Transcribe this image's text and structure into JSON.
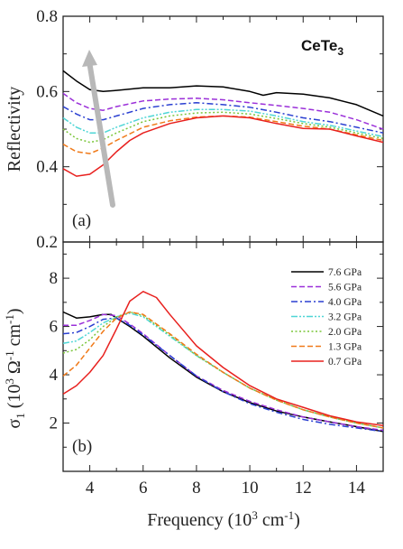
{
  "chart_data": [
    {
      "type": "line",
      "panel_label": "(a)",
      "material": {
        "main": "CeTe",
        "sub": "3"
      },
      "ylabel": "Reflectivity",
      "xlabel": "",
      "xlim": [
        3,
        15
      ],
      "ylim": [
        0.2,
        0.8
      ],
      "yticks": [
        "0.2",
        "0.4",
        "0.6",
        "0.8"
      ],
      "annotation": "gray arrow indicating increasing pressure",
      "series": [
        {
          "name": "7.6 GPa",
          "color": "#000000",
          "dash": "solid",
          "x": [
            3,
            3.5,
            4,
            4.5,
            5,
            6,
            7,
            8,
            9,
            10,
            10.5,
            11,
            12,
            13,
            14,
            15
          ],
          "y": [
            0.655,
            0.628,
            0.605,
            0.6,
            0.603,
            0.61,
            0.61,
            0.615,
            0.612,
            0.6,
            0.59,
            0.597,
            0.593,
            0.583,
            0.565,
            0.535
          ]
        },
        {
          "name": "5.6 GPa",
          "color": "#9b30d9",
          "dash": "dash",
          "x": [
            3,
            3.5,
            4,
            4.5,
            5,
            6,
            7,
            8,
            9,
            10,
            11,
            12,
            13,
            14,
            15
          ],
          "y": [
            0.595,
            0.57,
            0.555,
            0.55,
            0.56,
            0.575,
            0.58,
            0.582,
            0.578,
            0.57,
            0.563,
            0.555,
            0.545,
            0.525,
            0.5
          ]
        },
        {
          "name": "4.0 GPa",
          "color": "#2a3fd1",
          "dash": "dashdot",
          "x": [
            3,
            3.5,
            4,
            4.5,
            5,
            6,
            7,
            8,
            9,
            10,
            11,
            12,
            13,
            14,
            15
          ],
          "y": [
            0.56,
            0.54,
            0.525,
            0.525,
            0.535,
            0.555,
            0.565,
            0.57,
            0.565,
            0.558,
            0.545,
            0.53,
            0.52,
            0.505,
            0.49
          ]
        },
        {
          "name": "3.2 GPa",
          "color": "#4fd6d6",
          "dash": "dashdotdot",
          "x": [
            3,
            3.5,
            4,
            4.5,
            5,
            6,
            7,
            8,
            9,
            10,
            11,
            12,
            13,
            14,
            15
          ],
          "y": [
            0.53,
            0.505,
            0.49,
            0.49,
            0.505,
            0.53,
            0.545,
            0.552,
            0.552,
            0.548,
            0.535,
            0.52,
            0.51,
            0.495,
            0.48
          ]
        },
        {
          "name": "2.0 GPa",
          "color": "#7bc63a",
          "dash": "dot",
          "x": [
            3,
            3.5,
            4,
            4.5,
            5,
            6,
            7,
            8,
            9,
            10,
            11,
            12,
            13,
            14,
            15
          ],
          "y": [
            0.5,
            0.475,
            0.465,
            0.472,
            0.49,
            0.52,
            0.535,
            0.543,
            0.545,
            0.54,
            0.528,
            0.515,
            0.505,
            0.49,
            0.475
          ]
        },
        {
          "name": "1.3 GPa",
          "color": "#f07a1a",
          "dash": "dash",
          "x": [
            3,
            3.5,
            4,
            4.5,
            5,
            6,
            7,
            8,
            9,
            10,
            11,
            12,
            13,
            14,
            15
          ],
          "y": [
            0.46,
            0.44,
            0.435,
            0.45,
            0.47,
            0.505,
            0.522,
            0.532,
            0.535,
            0.532,
            0.52,
            0.508,
            0.5,
            0.485,
            0.47
          ]
        },
        {
          "name": "0.7 GPa",
          "color": "#e8201e",
          "dash": "solid",
          "x": [
            3,
            3.5,
            4,
            4.5,
            5,
            5.5,
            6,
            7,
            8,
            9,
            10,
            11,
            12,
            13,
            14,
            15
          ],
          "y": [
            0.395,
            0.375,
            0.38,
            0.405,
            0.44,
            0.47,
            0.49,
            0.515,
            0.53,
            0.535,
            0.53,
            0.515,
            0.502,
            0.5,
            0.482,
            0.465
          ]
        }
      ]
    },
    {
      "type": "line",
      "panel_label": "(b)",
      "ylabel": "σ1 (10^3 Ω^-1 cm^-1)",
      "xlabel": "Frequency (10^3 cm^-1)",
      "xlim": [
        3,
        15
      ],
      "ylim": [
        0,
        9.5
      ],
      "xticks": [
        "4",
        "6",
        "8",
        "10",
        "12",
        "14"
      ],
      "yticks": [
        "2",
        "4",
        "6",
        "8"
      ],
      "legend": "top-right",
      "series": [
        {
          "name": "7.6 GPa",
          "color": "#000000",
          "dash": "solid",
          "x": [
            3,
            3.5,
            4,
            4.5,
            4.8,
            5,
            5.5,
            6,
            7,
            8,
            9,
            10,
            11,
            12,
            13,
            14,
            15
          ],
          "y": [
            6.6,
            6.35,
            6.4,
            6.5,
            6.5,
            6.35,
            6.0,
            5.6,
            4.7,
            3.9,
            3.3,
            2.85,
            2.5,
            2.25,
            2.05,
            1.85,
            1.65
          ]
        },
        {
          "name": "5.6 GPa",
          "color": "#9b30d9",
          "dash": "dash",
          "x": [
            3,
            3.5,
            4,
            4.5,
            5,
            5.5,
            6,
            7,
            8,
            9,
            10,
            11,
            12,
            13,
            14,
            15
          ],
          "y": [
            6.05,
            6.05,
            6.25,
            6.5,
            6.45,
            6.1,
            5.7,
            4.8,
            3.95,
            3.35,
            2.9,
            2.55,
            2.25,
            2.05,
            1.85,
            1.7
          ]
        },
        {
          "name": "4.0 GPa",
          "color": "#2a3fd1",
          "dash": "dashdot",
          "x": [
            3,
            3.5,
            4,
            4.5,
            5,
            5.5,
            6,
            7,
            8,
            9,
            10,
            11,
            12,
            13,
            14,
            15
          ],
          "y": [
            5.7,
            5.75,
            6.0,
            6.3,
            6.35,
            6.05,
            5.65,
            4.8,
            3.95,
            3.3,
            2.8,
            2.45,
            2.15,
            1.95,
            1.8,
            1.65
          ]
        },
        {
          "name": "3.2 GPa",
          "color": "#4fd6d6",
          "dash": "dashdotdot",
          "x": [
            3,
            3.5,
            4,
            4.5,
            5,
            5.5,
            6,
            7,
            8,
            9,
            10,
            11,
            12,
            13,
            14,
            15
          ],
          "y": [
            5.3,
            5.4,
            5.75,
            6.15,
            6.4,
            6.55,
            6.4,
            5.6,
            4.8,
            4.1,
            3.45,
            2.95,
            2.55,
            2.25,
            2.0,
            1.8
          ]
        },
        {
          "name": "2.0 GPa",
          "color": "#7bc63a",
          "dash": "dot",
          "x": [
            3,
            3.5,
            4,
            4.5,
            5,
            5.5,
            6,
            7,
            8,
            9,
            10,
            11,
            12,
            13,
            14,
            15
          ],
          "y": [
            4.9,
            5.05,
            5.45,
            6.0,
            6.4,
            6.6,
            6.45,
            5.65,
            4.8,
            4.1,
            3.45,
            2.95,
            2.55,
            2.25,
            2.0,
            1.8
          ]
        },
        {
          "name": "1.3 GPa",
          "color": "#f07a1a",
          "dash": "dash",
          "x": [
            3,
            3.5,
            4,
            4.5,
            5,
            5.5,
            6,
            7,
            8,
            9,
            10,
            11,
            12,
            13,
            14,
            15
          ],
          "y": [
            3.95,
            4.4,
            5.1,
            5.8,
            6.35,
            6.6,
            6.5,
            5.7,
            4.85,
            4.1,
            3.45,
            2.95,
            2.55,
            2.25,
            2.0,
            1.8
          ]
        },
        {
          "name": "0.7 GPa",
          "color": "#e8201e",
          "dash": "solid",
          "x": [
            3,
            3.5,
            4,
            4.5,
            5,
            5.5,
            6,
            6.5,
            7,
            8,
            9,
            10,
            11,
            12,
            13,
            14,
            15
          ],
          "y": [
            3.2,
            3.55,
            4.1,
            4.8,
            5.9,
            7.05,
            7.45,
            7.2,
            6.5,
            5.2,
            4.3,
            3.55,
            3.0,
            2.65,
            2.3,
            2.05,
            1.9
          ]
        }
      ]
    }
  ]
}
